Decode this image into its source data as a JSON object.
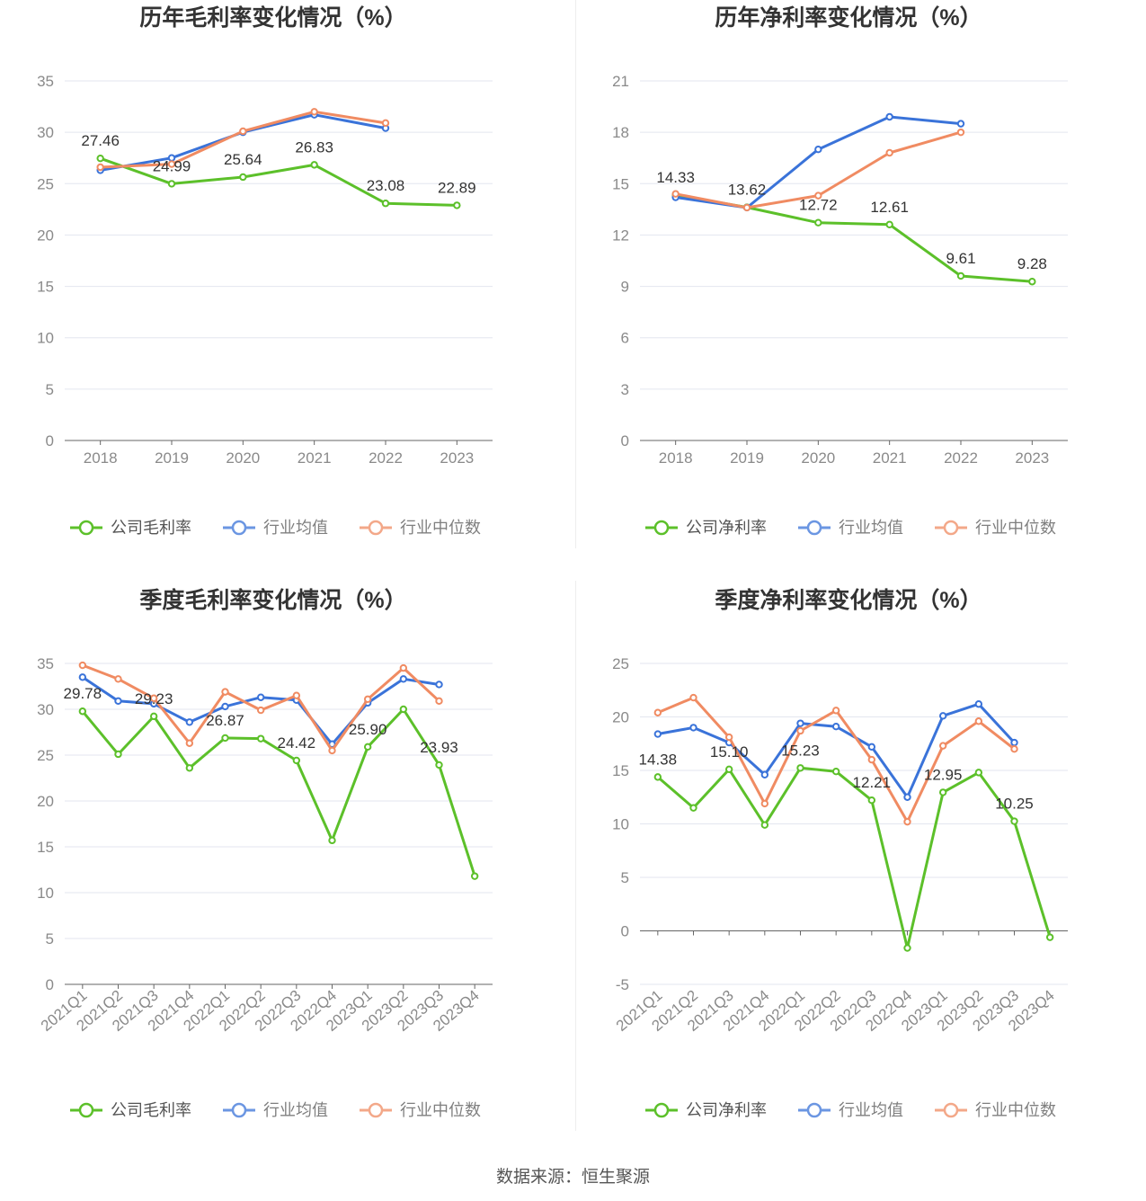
{
  "source": "数据来源：恒生聚源",
  "colors": {
    "company": "#5cc02a",
    "avg": "#3a73d9",
    "median": "#f08b62",
    "grid": "#e3e6ef",
    "axis": "#666666"
  },
  "chart_data": [
    {
      "type": "line",
      "title": "历年毛利率变化情况（%）",
      "categories": [
        "2018",
        "2019",
        "2020",
        "2021",
        "2022",
        "2023"
      ],
      "ylim": [
        0,
        35
      ],
      "yticks": [
        0,
        5,
        10,
        15,
        20,
        25,
        30,
        35
      ],
      "rotate_x": false,
      "series": [
        {
          "name": "公司毛利率",
          "key": "company",
          "values": [
            27.46,
            24.99,
            25.64,
            26.83,
            23.08,
            22.89
          ],
          "labels": [
            "27.46",
            "24.99",
            "25.64",
            "26.83",
            "23.08",
            "22.89"
          ]
        },
        {
          "name": "行业均值",
          "key": "avg",
          "values": [
            26.3,
            27.5,
            30.0,
            31.7,
            30.4,
            null
          ]
        },
        {
          "name": "行业中位数",
          "key": "median",
          "values": [
            26.6,
            26.9,
            30.1,
            32.0,
            30.9,
            null
          ]
        }
      ]
    },
    {
      "type": "line",
      "title": "历年净利率变化情况（%）",
      "categories": [
        "2018",
        "2019",
        "2020",
        "2021",
        "2022",
        "2023"
      ],
      "ylim": [
        0,
        21
      ],
      "yticks": [
        0,
        3,
        6,
        9,
        12,
        15,
        18,
        21
      ],
      "rotate_x": false,
      "series": [
        {
          "name": "公司净利率",
          "key": "company",
          "values": [
            14.33,
            13.62,
            12.72,
            12.61,
            9.61,
            9.28
          ],
          "labels": [
            "14.33",
            "13.62",
            "12.72",
            "12.61",
            "9.61",
            "9.28"
          ]
        },
        {
          "name": "行业均值",
          "key": "avg",
          "values": [
            14.2,
            13.6,
            17.0,
            18.9,
            18.5,
            null
          ]
        },
        {
          "name": "行业中位数",
          "key": "median",
          "values": [
            14.4,
            13.6,
            14.3,
            16.8,
            18.0,
            null
          ]
        }
      ]
    },
    {
      "type": "line",
      "title": "季度毛利率变化情况（%）",
      "categories": [
        "2021Q1",
        "2021Q2",
        "2021Q3",
        "2021Q4",
        "2022Q1",
        "2022Q2",
        "2022Q3",
        "2022Q4",
        "2023Q1",
        "2023Q2",
        "2023Q3",
        "2023Q4"
      ],
      "ylim": [
        0,
        35
      ],
      "yticks": [
        0,
        5,
        10,
        15,
        20,
        25,
        30,
        35
      ],
      "rotate_x": true,
      "series": [
        {
          "name": "公司毛利率",
          "key": "company",
          "values": [
            29.78,
            25.1,
            29.23,
            23.6,
            26.87,
            26.8,
            24.42,
            15.7,
            25.9,
            30.0,
            23.93,
            11.8
          ],
          "labels": [
            "29.78",
            "",
            "29.23",
            "",
            "26.87",
            "",
            "24.42",
            "",
            "25.90",
            "",
            "23.93",
            ""
          ]
        },
        {
          "name": "行业均值",
          "key": "avg",
          "values": [
            33.5,
            30.9,
            30.6,
            28.6,
            30.3,
            31.3,
            31.0,
            26.2,
            30.7,
            33.3,
            32.7,
            null
          ]
        },
        {
          "name": "行业中位数",
          "key": "median",
          "values": [
            34.8,
            33.3,
            31.2,
            26.3,
            31.9,
            29.9,
            31.5,
            25.5,
            31.1,
            34.5,
            30.9,
            null
          ]
        }
      ]
    },
    {
      "type": "line",
      "title": "季度净利率变化情况（%）",
      "categories": [
        "2021Q1",
        "2021Q2",
        "2021Q3",
        "2021Q4",
        "2022Q1",
        "2022Q2",
        "2022Q3",
        "2022Q4",
        "2023Q1",
        "2023Q2",
        "2023Q3",
        "2023Q4"
      ],
      "ylim": [
        -5,
        25
      ],
      "yticks": [
        -5,
        0,
        5,
        10,
        15,
        20,
        25
      ],
      "rotate_x": true,
      "series": [
        {
          "name": "公司净利率",
          "key": "company",
          "values": [
            14.38,
            11.5,
            15.1,
            9.9,
            15.23,
            14.9,
            12.21,
            -1.6,
            12.95,
            14.8,
            10.25,
            -0.6
          ],
          "labels": [
            "14.38",
            "",
            "15.10",
            "",
            "15.23",
            "",
            "12.21",
            "",
            "12.95",
            "",
            "10.25",
            ""
          ]
        },
        {
          "name": "行业均值",
          "key": "avg",
          "values": [
            18.4,
            19.0,
            17.6,
            14.6,
            19.4,
            19.1,
            17.2,
            12.5,
            20.1,
            21.2,
            17.6,
            null
          ]
        },
        {
          "name": "行业中位数",
          "key": "median",
          "values": [
            20.4,
            21.8,
            18.1,
            11.9,
            18.7,
            20.6,
            16.0,
            10.2,
            17.3,
            19.6,
            17.0,
            null
          ]
        }
      ]
    }
  ]
}
